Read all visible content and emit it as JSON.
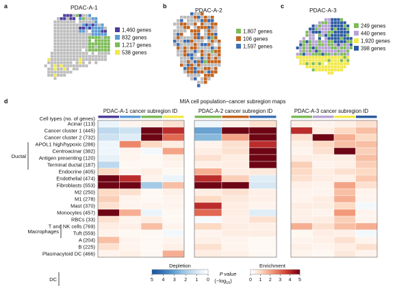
{
  "colors": {
    "blue": "#3e6fb3",
    "orange": "#c4651f",
    "grey": "#bdbdbd",
    "purple": "#4c3d99",
    "lightblue": "#5b9bd5",
    "green": "#7dbb58",
    "yellow": "#f2e84a",
    "lavender": "#b7a3d6",
    "navy": "#2c5aa0"
  },
  "panels": {
    "a": {
      "letter": "a",
      "title": "PDAC-A-1",
      "legend": [
        {
          "text": "1,460 genes",
          "color": "#4c3d99"
        },
        {
          "text": "832 genes",
          "color": "#5b9bd5"
        },
        {
          "text": "1,217 genes",
          "color": "#7dbb58"
        },
        {
          "text": "538 genes",
          "color": "#f2e84a"
        }
      ]
    },
    "b": {
      "letter": "b",
      "title": "PDAC-A-2",
      "legend": [
        {
          "text": "1,807 genes",
          "color": "#7dbb58"
        },
        {
          "text": "106 genes",
          "color": "#c4651f"
        },
        {
          "text": "1,597 genes",
          "color": "#3e6fb3"
        }
      ]
    },
    "c": {
      "letter": "c",
      "title": "PDAC-A-3",
      "legend": [
        {
          "text": "249 genes",
          "color": "#7dbb58"
        },
        {
          "text": "440 genes",
          "color": "#b7a3d6"
        },
        {
          "text": "1,920 genes",
          "color": "#f2e84a"
        },
        {
          "text": "398 genes",
          "color": "#2c5aa0"
        }
      ]
    }
  },
  "panel_d": {
    "letter": "d",
    "suptitle": "MIA cell population–cancer subregion maps",
    "row_header": "Cell types (no. of genes)",
    "ductal_label": "Ductal",
    "macrophages_label": "Macrophages",
    "dc_label": "DC",
    "colorbar": {
      "depletion": "Depletion",
      "enrichment": "Enrichment",
      "p_value": "P value",
      "p_unit": "(−log",
      "p_sub": "10",
      "p_close": ")",
      "depletion_ticks": [
        "5",
        "4",
        "3",
        "2",
        "1",
        "0"
      ],
      "enrichment_ticks": [
        "0",
        "1",
        "2",
        "3",
        "4",
        "5"
      ]
    }
  },
  "chart_data": {
    "type": "heatmap",
    "title": "MIA cell population–cancer subregion maps",
    "value_label": "P value (−log10); negative = depletion, positive = enrichment",
    "range": [
      -5,
      5
    ],
    "rows": [
      "Acinar (113)",
      "Cancer cluster 1 (445)",
      "Cancer cluster 2 (732)",
      "APOL1 high/hypoxic (286)",
      "Centroacinar (382)",
      "Antigen presenting (120)",
      "Terminal ductal (187)",
      "Endocrine (405)",
      "Endothelial (474)",
      "Fibroblasts (553)",
      "M2 (250)",
      "M1 (278)",
      "Mast (370)",
      "Monocytes (457)",
      "RBCs (33)",
      "T and NK cells (769)",
      "Tuft (559)",
      "A (204)",
      "B (225)",
      "Plasmacytoid DC (466)"
    ],
    "blocks": [
      {
        "title": "PDAC-A-1 cancer subregion ID",
        "column_colors": [
          "#4c3d99",
          "#5b9bd5",
          "#7dbb58",
          "#f2e84a"
        ],
        "values": [
          [
            -0.5,
            0.3,
            0.5,
            0.8
          ],
          [
            -1.5,
            -1.2,
            5,
            4
          ],
          [
            -1.2,
            -0.8,
            5,
            3
          ],
          [
            -0.4,
            2.5,
            1,
            0.5
          ],
          [
            -0.4,
            0.3,
            -0.3,
            2
          ],
          [
            -0.6,
            0.3,
            0.2,
            0.4
          ],
          [
            -1.5,
            0.2,
            0.2,
            0.3
          ],
          [
            1,
            0.3,
            0.5,
            0.2
          ],
          [
            5,
            4,
            0.3,
            -0.5
          ],
          [
            5,
            5,
            -2,
            1.5
          ],
          [
            1,
            0.8,
            0.2,
            0.4
          ],
          [
            1.2,
            0.3,
            0.2,
            0.3
          ],
          [
            0.8,
            0.3,
            0.3,
            0.3
          ],
          [
            5,
            1.8,
            -0.5,
            0.2
          ],
          [
            0.8,
            0.3,
            0.5,
            0.2
          ],
          [
            0.5,
            0.4,
            1.5,
            0.3
          ],
          [
            0.3,
            0.2,
            0.2,
            -0.3
          ],
          [
            1.5,
            0.3,
            0.2,
            0.3
          ],
          [
            0.8,
            0.3,
            0.2,
            0.4
          ],
          [
            0.3,
            0.4,
            0.2,
            1.8
          ]
        ]
      },
      {
        "title": "PDAC-A-2 cancer subregion ID",
        "column_colors": [
          "#7dbb58",
          "#c4651f",
          "#3e6fb3"
        ],
        "values": [
          [
            -0.4,
            0.4,
            0.8
          ],
          [
            -3,
            5,
            5
          ],
          [
            -2.5,
            2,
            5
          ],
          [
            0.3,
            0.8,
            4
          ],
          [
            0.5,
            0.8,
            5
          ],
          [
            0.8,
            0.5,
            5
          ],
          [
            0.4,
            0.5,
            5
          ],
          [
            1.8,
            0.5,
            0.6
          ],
          [
            4,
            1.2,
            -0.8
          ],
          [
            5,
            5,
            -1
          ],
          [
            0.5,
            0.8,
            0.4
          ],
          [
            1,
            0.6,
            0.4
          ],
          [
            4,
            0.5,
            0.3
          ],
          [
            3,
            0.5,
            -0.8
          ],
          [
            -0.2,
            0.4,
            0.8
          ],
          [
            1,
            0.5,
            0.4
          ],
          [
            0.3,
            0.5,
            0.5
          ],
          [
            0.4,
            0.3,
            0.2
          ],
          [
            0.8,
            0.3,
            0.2
          ],
          [
            0.5,
            0.4,
            0.2
          ]
        ]
      },
      {
        "title": "PDAC-A-3 cancer subregion ID",
        "column_colors": [
          "#7dbb58",
          "#b7a3d6",
          "#f2e84a",
          "#2c5aa0"
        ],
        "values": [
          [
            0.4,
            0.3,
            0.4,
            0.8
          ],
          [
            4,
            0.5,
            1,
            1.5
          ],
          [
            0.8,
            5,
            1.8,
            1
          ],
          [
            0.4,
            1,
            1.5,
            1.5
          ],
          [
            0.3,
            0.8,
            5,
            1.2
          ],
          [
            0.5,
            0.4,
            0.5,
            1.5
          ],
          [
            1.2,
            0.3,
            0.4,
            1.2
          ],
          [
            1,
            0.5,
            0.8,
            1
          ],
          [
            0.8,
            0.5,
            0.4,
            1.3
          ],
          [
            0.4,
            0.3,
            2,
            0.8
          ],
          [
            0.3,
            0.3,
            1.5,
            0.3
          ],
          [
            0.3,
            0.5,
            1.8,
            0.3
          ],
          [
            0.5,
            0.5,
            1,
            -0.3
          ],
          [
            0.4,
            0.3,
            2.2,
            0.3
          ],
          [
            0.4,
            0.5,
            1.2,
            0.3
          ],
          [
            1.8,
            0.8,
            1.5,
            1.8
          ],
          [
            0.2,
            0.5,
            0.4,
            -0.3
          ],
          [
            0.3,
            0.4,
            0.8,
            0.3
          ],
          [
            0.4,
            0.3,
            0.5,
            0.8
          ],
          [
            0.3,
            0.2,
            0.6,
            0.3
          ]
        ]
      }
    ]
  }
}
